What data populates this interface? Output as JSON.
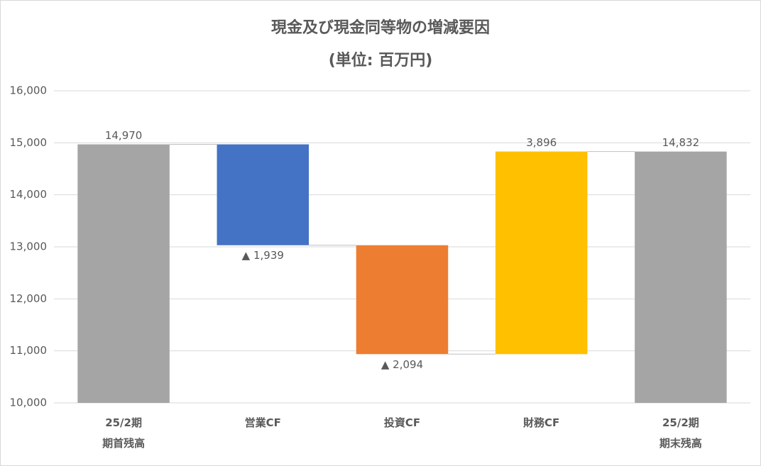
{
  "chart_data": {
    "type": "waterfall",
    "title": "現金及び現金同等物の増減要因",
    "subtitle": "(単位: 百万円)",
    "categories": [
      "25/2期\n期首残高",
      "営業CF",
      "投資CF",
      "財務CF",
      "25/2期\n期末残高"
    ],
    "values": [
      14970,
      -1939,
      -2094,
      3896,
      14832
    ],
    "value_labels": [
      "14,970",
      "▲ 1,939",
      "▲ 2,094",
      "3,896",
      "14,832"
    ],
    "is_total": [
      true,
      false,
      false,
      false,
      true
    ],
    "colors": [
      "#a5a5a5",
      "#4472c4",
      "#ed7d31",
      "#ffc000",
      "#a5a5a5"
    ],
    "ylim": [
      10000,
      16000
    ],
    "yticks": [
      {
        "value": 10000,
        "label": "10,000"
      },
      {
        "value": 11000,
        "label": "11,000"
      },
      {
        "value": 12000,
        "label": "12,000"
      },
      {
        "value": 13000,
        "label": "13,000"
      },
      {
        "value": 14000,
        "label": "14,000"
      },
      {
        "value": 15000,
        "label": "15,000"
      },
      {
        "value": 16000,
        "label": "16,000"
      }
    ],
    "grid": true
  }
}
